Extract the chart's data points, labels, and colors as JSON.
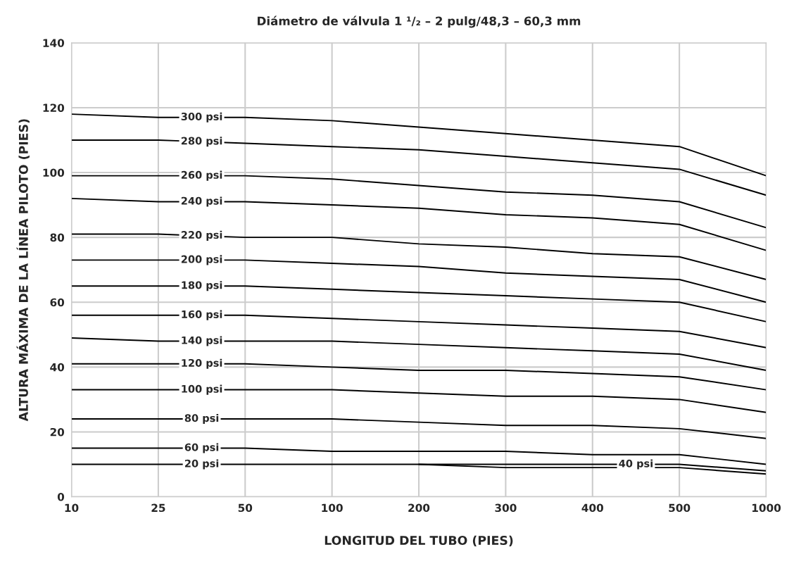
{
  "chart_data": {
    "type": "line",
    "title": "Diámetro de válvula 1 ¹/₂ – 2 pulg/48,3 – 60,3 mm",
    "xlabel": "LONGITUD DEL TUBO (PIES)",
    "ylabel": "ALTURA MÁXIMA DE LA LÍNEA PILOTO (PIES)",
    "categories": [
      "10",
      "25",
      "50",
      "100",
      "200",
      "300",
      "400",
      "500",
      "1000"
    ],
    "ylim": [
      0,
      140
    ],
    "yticks": [
      0,
      20,
      40,
      60,
      80,
      100,
      120,
      140
    ],
    "grid": true,
    "legend": false,
    "marker": "none",
    "line_style": "solid",
    "series": [
      {
        "name": "300 psi",
        "color": "#000000",
        "values": [
          118,
          117,
          117,
          116,
          114,
          112,
          110,
          108,
          99
        ]
      },
      {
        "name": "280 psi",
        "color": "#000000",
        "values": [
          110,
          110,
          109,
          108,
          107,
          105,
          103,
          101,
          93
        ]
      },
      {
        "name": "260 psi",
        "color": "#000000",
        "values": [
          99,
          99,
          99,
          98,
          96,
          94,
          93,
          91,
          83
        ]
      },
      {
        "name": "240 psi",
        "color": "#000000",
        "values": [
          92,
          91,
          91,
          90,
          89,
          87,
          86,
          84,
          76
        ]
      },
      {
        "name": "220 psi",
        "color": "#000000",
        "values": [
          81,
          81,
          80,
          80,
          78,
          77,
          75,
          74,
          67
        ]
      },
      {
        "name": "200 psi",
        "color": "#000000",
        "values": [
          73,
          73,
          73,
          72,
          71,
          69,
          68,
          67,
          60
        ]
      },
      {
        "name": "180 psi",
        "color": "#000000",
        "values": [
          65,
          65,
          65,
          64,
          63,
          62,
          61,
          60,
          54
        ]
      },
      {
        "name": "160 psi",
        "color": "#000000",
        "values": [
          56,
          56,
          56,
          55,
          54,
          53,
          52,
          51,
          46
        ]
      },
      {
        "name": "140 psi",
        "color": "#000000",
        "values": [
          49,
          48,
          48,
          48,
          47,
          46,
          45,
          44,
          39
        ]
      },
      {
        "name": "120 psi",
        "color": "#000000",
        "values": [
          41,
          41,
          41,
          40,
          39,
          39,
          38,
          37,
          33
        ]
      },
      {
        "name": "100 psi",
        "color": "#000000",
        "values": [
          33,
          33,
          33,
          33,
          32,
          31,
          31,
          30,
          26
        ]
      },
      {
        "name": "80 psi",
        "color": "#000000",
        "values": [
          24,
          24,
          24,
          24,
          23,
          22,
          22,
          21,
          18
        ]
      },
      {
        "name": "60 psi",
        "color": "#000000",
        "values": [
          15,
          15,
          15,
          14,
          14,
          14,
          13,
          13,
          10
        ]
      },
      {
        "name": "40 psi",
        "color": "#000000",
        "values": [
          null,
          null,
          null,
          null,
          10,
          10,
          10,
          10,
          8
        ]
      },
      {
        "name": "20 psi",
        "color": "#000000",
        "values": [
          10,
          10,
          10,
          10,
          10,
          9,
          9,
          9,
          7
        ]
      }
    ]
  }
}
